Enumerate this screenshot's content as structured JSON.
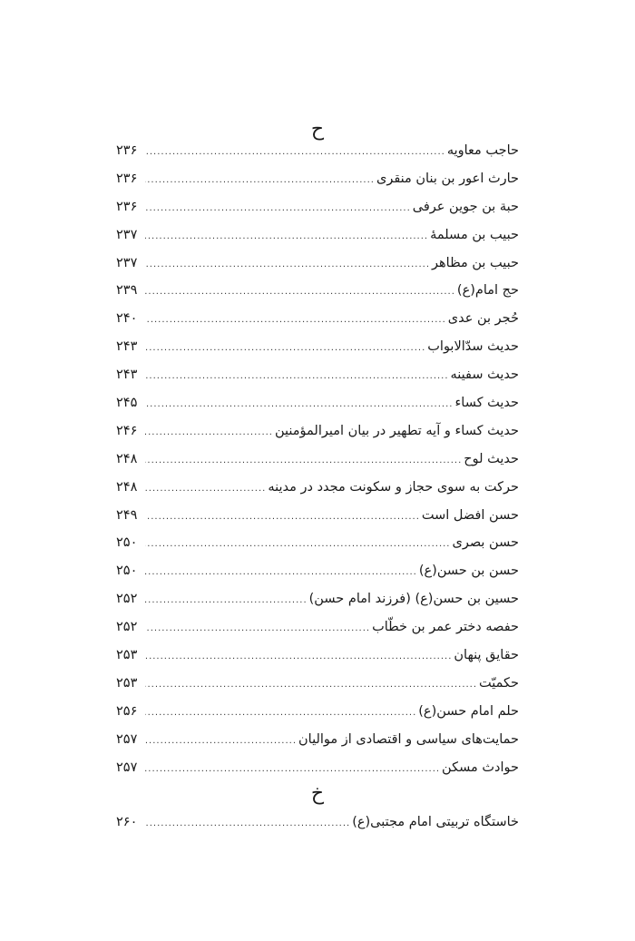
{
  "sections": [
    {
      "letter": "ح",
      "entries": [
        {
          "title": "حاجب معاویه",
          "page": "۲۳۶"
        },
        {
          "title": "حارث اعور بن بنان منقری",
          "page": "۲۳۶"
        },
        {
          "title": "حبة بن جوین عرفی",
          "page": "۲۳۶"
        },
        {
          "title": "حبیب بن مسلمهٔ",
          "page": "۲۳۷"
        },
        {
          "title": "حبیب بن مظاهر",
          "page": "۲۳۷"
        },
        {
          "title": "حج امام(ع)",
          "page": "۲۳۹"
        },
        {
          "title": "حُجر بن عدی",
          "page": "۲۴۰"
        },
        {
          "title": "حدیث سدّالابواب",
          "page": "۲۴۳"
        },
        {
          "title": "حدیث سفینه",
          "page": "۲۴۳"
        },
        {
          "title": "حدیث کساء",
          "page": "۲۴۵"
        },
        {
          "title": "حدیث کساء و آیه تطهیر در بیان امیرالمؤمنین",
          "page": "۲۴۶"
        },
        {
          "title": "حدیث لوح",
          "page": "۲۴۸"
        },
        {
          "title": "حرکت به سوی حجاز و سکونت مجدد در مدینه",
          "page": "۲۴۸"
        },
        {
          "title": "حسن افضل است",
          "page": "۲۴۹"
        },
        {
          "title": "حسن بصری",
          "page": "۲۵۰"
        },
        {
          "title": "حسن بن حسن(ع)",
          "page": "۲۵۰"
        },
        {
          "title": "حسین بن حسن(ع) (فرزند امام حسن)",
          "page": "۲۵۲"
        },
        {
          "title": "حفصه دختر عمر بن خطّاب",
          "page": "۲۵۲"
        },
        {
          "title": "حقایق پنهان",
          "page": "۲۵۳"
        },
        {
          "title": "حکمیّت",
          "page": "۲۵۳"
        },
        {
          "title": "حلم امام حسن(ع)",
          "page": "۲۵۶"
        },
        {
          "title": "حمایت‌های سیاسی و اقتصادی از موالیان",
          "page": "۲۵۷"
        },
        {
          "title": "حوادث مسکن",
          "page": "۲۵۷"
        }
      ]
    },
    {
      "letter": "خ",
      "entries": [
        {
          "title": "خاستگاه تربیتی امام مجتبی(ع)",
          "page": "۲۶۰"
        }
      ]
    }
  ]
}
